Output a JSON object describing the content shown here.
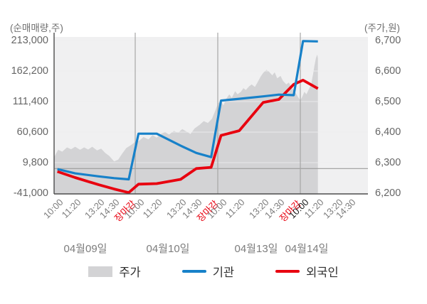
{
  "header": {
    "left_axis_title": "(순매매량,주)",
    "right_axis_title": "(주가,원)"
  },
  "legend": [
    {
      "label": "주가",
      "type": "area",
      "color": "#d3d3d5"
    },
    {
      "label": "기관",
      "type": "line",
      "color": "#1781c9"
    },
    {
      "label": "외국인",
      "type": "line",
      "color": "#e8000f"
    }
  ],
  "chart_data": {
    "type": "area+line",
    "left_axis": {
      "title": "(순매매량,주)",
      "tick_labels": [
        "213,000",
        "162,200",
        "111,400",
        "60,600",
        "9,800",
        "-41,000"
      ],
      "tick_values": [
        213000,
        162200,
        111400,
        60600,
        9800,
        -41000
      ],
      "range": [
        -41000,
        213000
      ]
    },
    "right_axis": {
      "title": "(주가,원)",
      "tick_labels": [
        "6,700",
        "6,600",
        "6,500",
        "6,400",
        "6,300",
        "6,200"
      ],
      "tick_values": [
        6700,
        6600,
        6500,
        6400,
        6300,
        6200
      ],
      "range": [
        6200,
        6700
      ]
    },
    "zero_line_value": 0,
    "days": [
      {
        "date": "04월09일",
        "times": [
          {
            "label": "10:00",
            "state": "normal"
          },
          {
            "label": "11:20",
            "state": "normal"
          },
          {
            "label": "13:20",
            "state": "normal"
          },
          {
            "label": "14:30",
            "state": "normal"
          },
          {
            "label": "장마감",
            "state": "close"
          }
        ]
      },
      {
        "date": "04월10일",
        "times": [
          {
            "label": "10:00",
            "state": "normal"
          },
          {
            "label": "11:20",
            "state": "normal"
          },
          {
            "label": "13:20",
            "state": "normal"
          },
          {
            "label": "14:30",
            "state": "normal"
          },
          {
            "label": "장마감",
            "state": "close"
          }
        ]
      },
      {
        "date": "04월13일",
        "times": [
          {
            "label": "10:00",
            "state": "normal"
          },
          {
            "label": "11:20",
            "state": "normal"
          },
          {
            "label": "13:20",
            "state": "normal"
          },
          {
            "label": "14:30",
            "state": "normal"
          },
          {
            "label": "장마감",
            "state": "close"
          }
        ]
      },
      {
        "date": "04월14일",
        "times": [
          {
            "label": "10:00",
            "state": "current"
          },
          {
            "label": "11:20",
            "state": "normal"
          },
          {
            "label": "13:20",
            "state": "normal"
          },
          {
            "label": "14:30",
            "state": "normal"
          }
        ]
      }
    ],
    "series": {
      "institutions": {
        "name": "기관",
        "axis": "left",
        "color": "#1781c9",
        "values": [
          -1000,
          -8000,
          -13000,
          -16000,
          -18000,
          58000,
          58000,
          38000,
          26000,
          19000,
          113000,
          116000,
          120000,
          123000,
          122000,
          212000,
          211500,
          null,
          null
        ]
      },
      "foreigners": {
        "name": "외국인",
        "axis": "left",
        "color": "#e8000f",
        "values": [
          -5000,
          -15000,
          -27000,
          -34000,
          -40000,
          -26000,
          -25000,
          -18000,
          0,
          2000,
          55000,
          63000,
          110000,
          115000,
          140000,
          147000,
          133000,
          null,
          null
        ]
      },
      "price_area": {
        "name": "주가",
        "axis": "right",
        "color": "#d3d3d5",
        "points": [
          [
            0.0,
            6318
          ],
          [
            0.05,
            6342
          ],
          [
            0.1,
            6336
          ],
          [
            0.16,
            6350
          ],
          [
            0.21,
            6344
          ],
          [
            0.26,
            6352
          ],
          [
            0.32,
            6342
          ],
          [
            0.37,
            6350
          ],
          [
            0.42,
            6343
          ],
          [
            0.47,
            6352
          ],
          [
            0.53,
            6340
          ],
          [
            0.58,
            6346
          ],
          [
            0.63,
            6332
          ],
          [
            0.68,
            6322
          ],
          [
            0.74,
            6304
          ],
          [
            0.79,
            6310
          ],
          [
            0.84,
            6330
          ],
          [
            0.89,
            6348
          ],
          [
            0.95,
            6358
          ],
          [
            1.0,
            6368
          ],
          [
            1.05,
            6372
          ],
          [
            1.1,
            6384
          ],
          [
            1.16,
            6376
          ],
          [
            1.21,
            6390
          ],
          [
            1.26,
            6382
          ],
          [
            1.31,
            6394
          ],
          [
            1.36,
            6400
          ],
          [
            1.41,
            6392
          ],
          [
            1.47,
            6404
          ],
          [
            1.52,
            6398
          ],
          [
            1.57,
            6410
          ],
          [
            1.62,
            6402
          ],
          [
            1.67,
            6394
          ],
          [
            1.72,
            6412
          ],
          [
            1.78,
            6424
          ],
          [
            1.83,
            6436
          ],
          [
            1.88,
            6430
          ],
          [
            1.93,
            6444
          ],
          [
            1.97,
            6470
          ],
          [
            2.0,
            6492
          ],
          [
            2.03,
            6502
          ],
          [
            2.07,
            6488
          ],
          [
            2.1,
            6508
          ],
          [
            2.14,
            6524
          ],
          [
            2.17,
            6512
          ],
          [
            2.21,
            6534
          ],
          [
            2.24,
            6524
          ],
          [
            2.28,
            6532
          ],
          [
            2.31,
            6544
          ],
          [
            2.34,
            6538
          ],
          [
            2.38,
            6550
          ],
          [
            2.41,
            6556
          ],
          [
            2.45,
            6548
          ],
          [
            2.48,
            6562
          ],
          [
            2.52,
            6582
          ],
          [
            2.55,
            6594
          ],
          [
            2.59,
            6604
          ],
          [
            2.62,
            6598
          ],
          [
            2.66,
            6586
          ],
          [
            2.69,
            6596
          ],
          [
            2.72,
            6576
          ],
          [
            2.76,
            6584
          ],
          [
            2.79,
            6568
          ],
          [
            2.83,
            6556
          ],
          [
            2.86,
            6562
          ],
          [
            2.9,
            6544
          ],
          [
            2.93,
            6534
          ],
          [
            2.97,
            6516
          ],
          [
            3.0,
            6504
          ],
          [
            3.03,
            6516
          ],
          [
            3.06,
            6532
          ],
          [
            3.09,
            6524
          ],
          [
            3.13,
            6542
          ],
          [
            3.16,
            6556
          ],
          [
            3.19,
            6592
          ],
          [
            3.21,
            6618
          ],
          [
            3.23,
            6642
          ],
          [
            3.25,
            6654
          ],
          [
            3.26,
            6642
          ]
        ]
      }
    }
  }
}
